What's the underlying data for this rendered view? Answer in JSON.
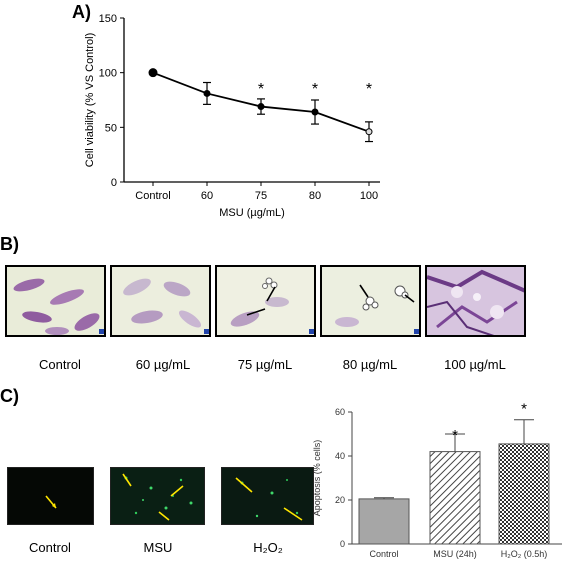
{
  "panel_a": {
    "letter": "A)",
    "chart_data": {
      "type": "line",
      "categories": [
        "Control",
        "60",
        "75",
        "80",
        "100"
      ],
      "values": [
        100,
        81,
        69,
        64,
        46
      ],
      "errors": [
        0,
        10,
        7,
        11,
        9
      ],
      "significant": [
        false,
        false,
        true,
        true,
        true
      ],
      "significance_marker": "*",
      "xlabel": "MSU (µg/mL)",
      "ylabel": "Cell viability (% VS Control)",
      "ylim": [
        0,
        150
      ],
      "yticks": [
        "0",
        "50",
        "100",
        "150"
      ]
    }
  },
  "panel_b": {
    "letter": "B)",
    "images": [
      {
        "label": "Control"
      },
      {
        "label": "60 µg/mL"
      },
      {
        "label": "75 µg/mL"
      },
      {
        "label": "80 µg/mL"
      },
      {
        "label": "100 µg/mL"
      }
    ]
  },
  "panel_c": {
    "letter": "C)",
    "images": [
      {
        "label": "Control"
      },
      {
        "label": "MSU"
      },
      {
        "label": "H₂O₂"
      }
    ],
    "chart_data": {
      "type": "bar",
      "categories": [
        "Control",
        "MSU (24h)",
        "H₂O₂ (0.5h)"
      ],
      "values": [
        20.5,
        42,
        45.5
      ],
      "errors": [
        0.5,
        8,
        11
      ],
      "significant": [
        false,
        true,
        true
      ],
      "significance_marker": "*",
      "ylabel": "Apoptosis (% cells)",
      "ylim": [
        0,
        60
      ],
      "yticks": [
        "0",
        "20",
        "40",
        "60"
      ],
      "colors": [
        "#a6a6a6",
        "#ffffff",
        "#ffffff"
      ]
    }
  }
}
